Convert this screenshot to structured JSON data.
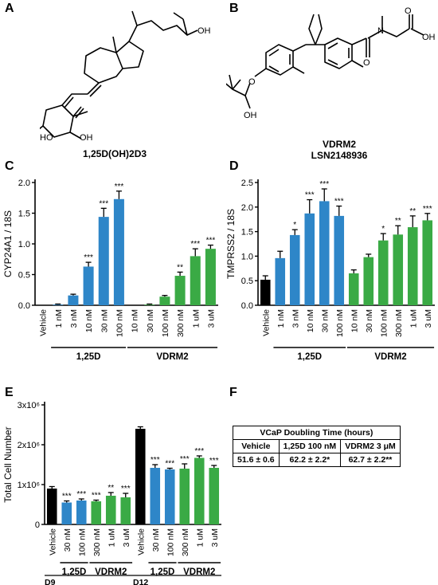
{
  "panels": {
    "a": "A",
    "b": "B",
    "c": "C",
    "d": "D",
    "e": "E",
    "f": "F"
  },
  "molecules": {
    "a_label": "1,25D(OH)2D3",
    "b_name": "VDRM2",
    "b_id": "LSN2148936"
  },
  "chart_data": [
    {
      "id": "C",
      "type": "bar",
      "ylabel": "CYP24A1 / 18S",
      "ylim": [
        0,
        2.0
      ],
      "yticks": [
        "0.0",
        "0.5",
        "1.0",
        "1.5",
        "2.0"
      ],
      "categories": [
        "Vehicle",
        "1 nM",
        "3 nM",
        "10 nM",
        "30 nM",
        "100 nM",
        "10 nM",
        "30 nM",
        "100 nM",
        "300 nM",
        "1 uM",
        "3 uM"
      ],
      "values": [
        0.0,
        0.01,
        0.16,
        0.63,
        1.44,
        1.73,
        0.0,
        0.01,
        0.14,
        0.48,
        0.8,
        0.92
      ],
      "errors": [
        0.0,
        0.01,
        0.02,
        0.07,
        0.14,
        0.13,
        0.0,
        0.01,
        0.02,
        0.06,
        0.12,
        0.06
      ],
      "colors": [
        "#000000",
        "#2e86c8",
        "#2e86c8",
        "#2e86c8",
        "#2e86c8",
        "#2e86c8",
        "#3aaa45",
        "#3aaa45",
        "#3aaa45",
        "#3aaa45",
        "#3aaa45",
        "#3aaa45"
      ],
      "significance": [
        "",
        "",
        "",
        "***",
        "***",
        "***",
        "",
        "",
        "",
        "**",
        "***",
        "***"
      ],
      "groups": [
        {
          "label": "1,25D",
          "from": 1,
          "to": 5
        },
        {
          "label": "VDRM2",
          "from": 6,
          "to": 11
        }
      ]
    },
    {
      "id": "D",
      "type": "bar",
      "ylabel": "TMPRSS2 / 18S",
      "ylim": [
        0,
        2.5
      ],
      "yticks": [
        "0.0",
        "0.5",
        "1.0",
        "1.5",
        "2.0",
        "2.5"
      ],
      "categories": [
        "Vehicle",
        "1 nM",
        "3 nM",
        "10 nM",
        "30 nM",
        "100 nM",
        "10 nM",
        "30 nM",
        "100 nM",
        "300 nM",
        "1 uM",
        "3 uM"
      ],
      "values": [
        0.52,
        0.96,
        1.43,
        1.87,
        2.12,
        1.82,
        0.65,
        0.98,
        1.32,
        1.44,
        1.59,
        1.73
      ],
      "errors": [
        0.08,
        0.14,
        0.11,
        0.28,
        0.25,
        0.2,
        0.07,
        0.06,
        0.14,
        0.18,
        0.23,
        0.14
      ],
      "colors": [
        "#000000",
        "#2e86c8",
        "#2e86c8",
        "#2e86c8",
        "#2e86c8",
        "#2e86c8",
        "#3aaa45",
        "#3aaa45",
        "#3aaa45",
        "#3aaa45",
        "#3aaa45",
        "#3aaa45"
      ],
      "significance": [
        "",
        "",
        "*",
        "***",
        "***",
        "***",
        "",
        "",
        "*",
        "**",
        "**",
        "***"
      ],
      "groups": [
        {
          "label": "1,25D",
          "from": 1,
          "to": 5
        },
        {
          "label": "VDRM2",
          "from": 6,
          "to": 11
        }
      ]
    },
    {
      "id": "E",
      "type": "bar",
      "ylabel": "Total Cell Number",
      "ylim": [
        0,
        3000000
      ],
      "yticks": [
        "0",
        "1x10⁶",
        "2x10⁶",
        "3x10⁶"
      ],
      "categories": [
        "Vehicle",
        "30 nM",
        "100 nM",
        "300 nM",
        "1 uM",
        "3 uM",
        "Vehicle",
        "30 nM",
        "100 nM",
        "300 nM",
        "1 uM",
        "3 uM"
      ],
      "values": [
        900000,
        550000,
        600000,
        580000,
        720000,
        680000,
        2400000,
        1420000,
        1380000,
        1400000,
        1670000,
        1420000
      ],
      "errors": [
        50000,
        40000,
        40000,
        30000,
        80000,
        100000,
        50000,
        80000,
        30000,
        120000,
        50000,
        60000
      ],
      "colors": [
        "#000000",
        "#2e86c8",
        "#2e86c8",
        "#3aaa45",
        "#3aaa45",
        "#3aaa45",
        "#000000",
        "#2e86c8",
        "#2e86c8",
        "#3aaa45",
        "#3aaa45",
        "#3aaa45"
      ],
      "significance": [
        "",
        "***",
        "***",
        "***",
        "**",
        "***",
        "",
        "***",
        "***",
        "***",
        "***",
        "***"
      ],
      "groups": [
        {
          "label": "1,25D",
          "from": 1,
          "to": 2
        },
        {
          "label": "VDRM2",
          "from": 3,
          "to": 5
        },
        {
          "label": "1,25D",
          "from": 7,
          "to": 8
        },
        {
          "label": "VDRM2",
          "from": 9,
          "to": 11
        }
      ],
      "timepoints": [
        {
          "label": "D9",
          "from": 0,
          "to": 5
        },
        {
          "label": "D12",
          "from": 6,
          "to": 11
        }
      ]
    }
  ],
  "table": {
    "title": "VCaP Doubling Time (hours)",
    "headers": [
      "Vehicle",
      "1,25D 100 nM",
      "VDRM2 3 μM"
    ],
    "values": [
      "51.6 ± 0.6",
      "62.2 ± 2.2*",
      "62.7 ± 2.2**"
    ]
  }
}
